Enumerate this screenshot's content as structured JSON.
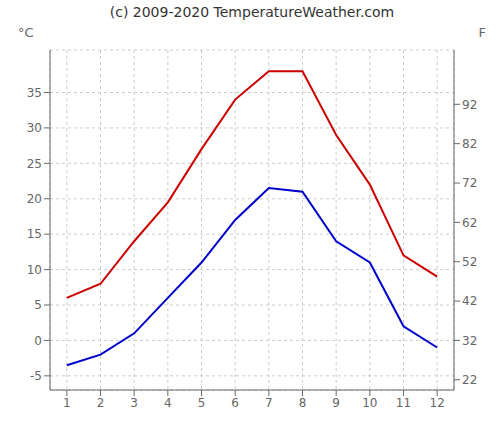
{
  "chart_data": {
    "type": "line",
    "title": "(c) 2009-2020 TemperatureWeather.com",
    "ylabel": "°C",
    "y2label": "F",
    "x": [
      1,
      2,
      3,
      4,
      5,
      6,
      7,
      8,
      9,
      10,
      11,
      12
    ],
    "xlim": [
      0.5,
      12.5
    ],
    "xticks": [
      1,
      2,
      3,
      4,
      5,
      6,
      7,
      8,
      9,
      10,
      11,
      12
    ],
    "ylim": [
      -7,
      41
    ],
    "yticks": [
      -5,
      0,
      5,
      10,
      15,
      20,
      25,
      30,
      35
    ],
    "y2lim": [
      19.4,
      105.8
    ],
    "y2ticks": [
      22,
      32,
      42,
      52,
      62,
      72,
      82,
      92
    ],
    "grid": true,
    "series": [
      {
        "color": "#cc0000",
        "values": [
          6,
          8,
          14,
          19.5,
          27,
          34,
          38,
          38,
          29,
          22,
          12,
          9
        ]
      },
      {
        "color": "#0000cc",
        "values": [
          -3.5,
          -2,
          1,
          6,
          11,
          17,
          21.5,
          21,
          14,
          11,
          2,
          -1
        ]
      }
    ]
  }
}
